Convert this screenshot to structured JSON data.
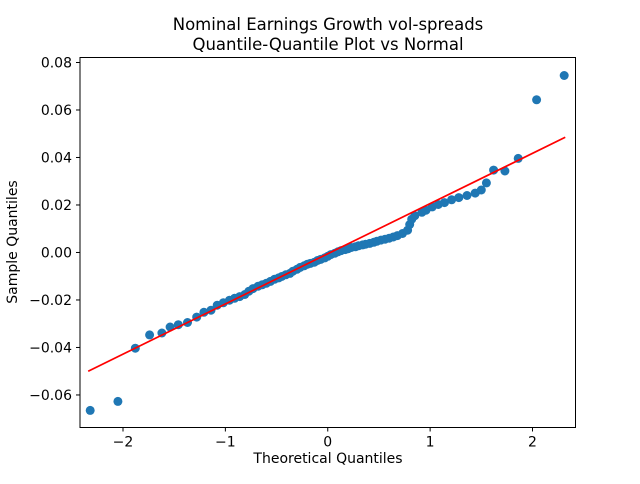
{
  "figure": {
    "title_line1": "Nominal Earnings Growth vol-spreads",
    "title_line2": "Quantile-Quantile Plot vs Normal",
    "xlabel": "Theoretical Quantiles",
    "ylabel": "Sample Quantiles"
  },
  "chart_data": {
    "type": "scatter",
    "title": "Nominal Earnings Growth vol-spreads\nQuantile-Quantile Plot vs Normal",
    "xlabel": "Theoretical Quantiles",
    "ylabel": "Sample Quantiles",
    "xlim": [
      -2.42,
      2.42
    ],
    "ylim": [
      -0.0737,
      0.0821
    ],
    "xticks": [
      -2,
      -1,
      0,
      1,
      2
    ],
    "xtick_labels": [
      "−2",
      "−1",
      "0",
      "1",
      "2"
    ],
    "yticks": [
      -0.06,
      -0.04,
      -0.02,
      0.0,
      0.02,
      0.04,
      0.06,
      0.08
    ],
    "ytick_labels": [
      "−0.06",
      "−0.04",
      "−0.02",
      "0.00",
      "0.02",
      "0.04",
      "0.06",
      "0.08"
    ],
    "grid": false,
    "legend": null,
    "marker_color": "#1f77b4",
    "marker_radius": 4.5,
    "line_color": "#ff0000",
    "axis_color": "#000000",
    "reference_line": {
      "x1": -2.34,
      "y1": -0.05,
      "x2": 2.32,
      "y2": 0.0485
    },
    "series": [
      {
        "name": "sample-vs-normal-quantiles",
        "points": [
          [
            -2.32,
            -0.0665
          ],
          [
            -2.05,
            -0.0627
          ],
          [
            -1.88,
            -0.0403
          ],
          [
            -1.74,
            -0.0347
          ],
          [
            -1.62,
            -0.0339
          ],
          [
            -1.54,
            -0.0314
          ],
          [
            -1.46,
            -0.0304
          ],
          [
            -1.37,
            -0.0295
          ],
          [
            -1.28,
            -0.0272
          ],
          [
            -1.21,
            -0.0252
          ],
          [
            -1.14,
            -0.0243
          ],
          [
            -1.08,
            -0.0222
          ],
          [
            -1.02,
            -0.0212
          ],
          [
            -0.96,
            -0.0201
          ],
          [
            -0.91,
            -0.0193
          ],
          [
            -0.86,
            -0.0186
          ],
          [
            -0.81,
            -0.0177
          ],
          [
            -0.77,
            -0.0163
          ],
          [
            -0.73,
            -0.0152
          ],
          [
            -0.68,
            -0.0142
          ],
          [
            -0.64,
            -0.0136
          ],
          [
            -0.6,
            -0.013
          ],
          [
            -0.56,
            -0.0122
          ],
          [
            -0.52,
            -0.0113
          ],
          [
            -0.48,
            -0.0107
          ],
          [
            -0.45,
            -0.0101
          ],
          [
            -0.41,
            -0.0094
          ],
          [
            -0.37,
            -0.0088
          ],
          [
            -0.34,
            -0.0079
          ],
          [
            -0.3,
            -0.0071
          ],
          [
            -0.27,
            -0.0063
          ],
          [
            -0.23,
            -0.0056
          ],
          [
            -0.2,
            -0.005
          ],
          [
            -0.17,
            -0.0046
          ],
          [
            -0.13,
            -0.0041
          ],
          [
            -0.1,
            -0.0034
          ],
          [
            -0.07,
            -0.0029
          ],
          [
            -0.03,
            -0.0023
          ],
          [
            0.0,
            -0.0016
          ],
          [
            0.03,
            -0.0009
          ],
          [
            0.07,
            -0.0003
          ],
          [
            0.1,
            0.0003
          ],
          [
            0.13,
            0.0008
          ],
          [
            0.17,
            0.0012
          ],
          [
            0.2,
            0.0016
          ],
          [
            0.23,
            0.0021
          ],
          [
            0.27,
            0.0024
          ],
          [
            0.3,
            0.0028
          ],
          [
            0.34,
            0.0032
          ],
          [
            0.37,
            0.0035
          ],
          [
            0.41,
            0.0038
          ],
          [
            0.45,
            0.0043
          ],
          [
            0.48,
            0.0047
          ],
          [
            0.52,
            0.0052
          ],
          [
            0.56,
            0.0056
          ],
          [
            0.6,
            0.006
          ],
          [
            0.64,
            0.0065
          ],
          [
            0.68,
            0.0071
          ],
          [
            0.73,
            0.008
          ],
          [
            0.78,
            0.0094
          ],
          [
            0.8,
            0.0118
          ],
          [
            0.82,
            0.014
          ],
          [
            0.85,
            0.0155
          ],
          [
            0.92,
            0.0169
          ],
          [
            0.96,
            0.0178
          ],
          [
            1.02,
            0.0192
          ],
          [
            1.08,
            0.0202
          ],
          [
            1.14,
            0.021
          ],
          [
            1.21,
            0.0222
          ],
          [
            1.28,
            0.0231
          ],
          [
            1.36,
            0.024
          ],
          [
            1.44,
            0.025
          ],
          [
            1.5,
            0.0263
          ],
          [
            1.55,
            0.0293
          ],
          [
            1.62,
            0.0347
          ],
          [
            1.73,
            0.0343
          ],
          [
            1.86,
            0.0396
          ],
          [
            2.04,
            0.0643
          ],
          [
            2.31,
            0.0745
          ]
        ]
      }
    ]
  }
}
